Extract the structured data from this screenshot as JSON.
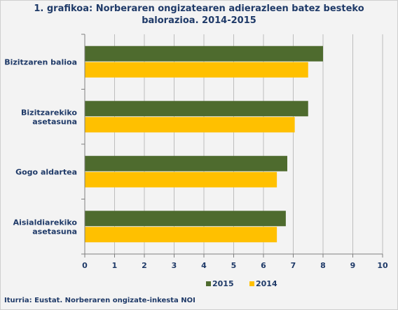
{
  "chart_data": {
    "type": "bar",
    "orientation": "horizontal",
    "title_line1": "1. grafikoa: Norberaren ongizatearen adierazleen batez besteko",
    "title_line2": "balorazioa. 2014-2015",
    "categories": [
      "Bizitzaren balioa",
      "Bizitzarekiko asetasuna",
      "Gogo aldartea",
      "Aisialdiarekiko asetasuna"
    ],
    "category_lines": [
      [
        "Bizitzaren balioa"
      ],
      [
        "Bizitzarekiko",
        "asetasuna"
      ],
      [
        "Gogo aldartea"
      ],
      [
        "Aisialdiarekiko",
        "asetasuna"
      ]
    ],
    "series": [
      {
        "name": "2015",
        "color": "#4e6b2e",
        "values": [
          8.0,
          7.5,
          6.8,
          6.75
        ]
      },
      {
        "name": "2014",
        "color": "#ffc000",
        "values": [
          7.5,
          7.05,
          6.45,
          6.45
        ]
      }
    ],
    "xlim": [
      0,
      10
    ],
    "xticks": [
      "0",
      "1",
      "2",
      "3",
      "4",
      "5",
      "6",
      "7",
      "8",
      "9",
      "10"
    ],
    "grid": "vertical",
    "legend_position": "bottom"
  },
  "source": "Iturria: Eustat. Norberaren ongizate-inkesta NOI"
}
